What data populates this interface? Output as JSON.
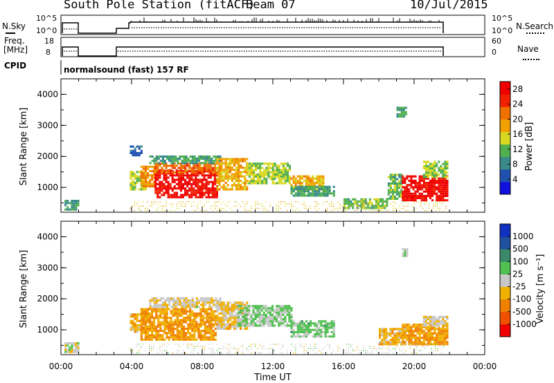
{
  "header": {
    "station": "South Pole Station (fitACF)",
    "beam": "Beam 07",
    "date": "10/Jul/2015"
  },
  "top_panels": {
    "nsky_label": "N.Sky",
    "nsearch_label": "N.Search",
    "nsky_ticks": [
      "10^5",
      "10^0"
    ],
    "nsearch_ticks": [
      "10^5",
      "10^0"
    ],
    "freq_label_1": "Freq.",
    "freq_label_2": "[MHz]",
    "freq_ticks": [
      "18",
      "8"
    ],
    "nave_label": "Nave",
    "nave_ticks": [
      "60",
      "0"
    ],
    "cpid_label": "CPID",
    "cpid_text": "normalsound (fast) 157 RF"
  },
  "colors": {
    "power_scale": [
      "#1010e0",
      "#2050b0",
      "#3a8a8a",
      "#50b050",
      "#d8d820",
      "#f0a000",
      "#f07000",
      "#f02000",
      "#f00000"
    ],
    "velocity_scale": [
      "#f00000",
      "#f05000",
      "#f08000",
      "#f0b000",
      "#c8c8c8",
      "#50c050",
      "#3a8a6a",
      "#2050a0",
      "#1030c0"
    ]
  },
  "chart_data": [
    {
      "type": "heatmap",
      "name": "power",
      "ylabel": "Slant Range [km]",
      "xlabel": "",
      "xlim": [
        0,
        24
      ],
      "ylim": [
        200,
        4500
      ],
      "yticks": [
        "1000",
        "2000",
        "3000",
        "4000"
      ],
      "xticks": [
        "00:00",
        "04:00",
        "08:00",
        "12:00",
        "16:00",
        "20:00",
        "00:00"
      ],
      "colorbar": {
        "label": "Power [dB]",
        "ticks": [
          "4",
          "8",
          "12",
          "16",
          "20",
          "24",
          "28"
        ],
        "range": [
          0,
          30
        ]
      },
      "regions": [
        {
          "t0": 0.2,
          "t1": 1.0,
          "r0": 250,
          "r1": 550,
          "value": 10
        },
        {
          "t0": 3.9,
          "t1": 4.8,
          "r0": 900,
          "r1": 1500,
          "value": 14
        },
        {
          "t0": 3.9,
          "t1": 4.6,
          "r0": 2000,
          "r1": 2300,
          "value": 6
        },
        {
          "t0": 4.5,
          "t1": 5.3,
          "r0": 1000,
          "r1": 1700,
          "value": 20
        },
        {
          "t0": 5.3,
          "t1": 8.8,
          "r0": 650,
          "r1": 1500,
          "value": 28
        },
        {
          "t0": 5.3,
          "t1": 8.8,
          "r0": 1450,
          "r1": 1750,
          "value": 22
        },
        {
          "t0": 5.0,
          "t1": 9.0,
          "r0": 1750,
          "r1": 2000,
          "value": 10
        },
        {
          "t0": 8.8,
          "t1": 10.5,
          "r0": 900,
          "r1": 1900,
          "value": 18
        },
        {
          "t0": 10.5,
          "t1": 13.0,
          "r0": 1100,
          "r1": 1800,
          "value": 14
        },
        {
          "t0": 13.0,
          "t1": 14.8,
          "r0": 900,
          "r1": 1350,
          "value": 18
        },
        {
          "t0": 13.0,
          "t1": 15.5,
          "r0": 700,
          "r1": 1000,
          "value": 10
        },
        {
          "t0": 16.0,
          "t1": 18.5,
          "r0": 300,
          "r1": 600,
          "value": 12
        },
        {
          "t0": 18.5,
          "t1": 19.3,
          "r0": 600,
          "r1": 1400,
          "value": 12
        },
        {
          "t0": 19.3,
          "t1": 21.9,
          "r0": 550,
          "r1": 1350,
          "value": 28
        },
        {
          "t0": 20.5,
          "t1": 21.9,
          "r0": 1300,
          "r1": 1800,
          "value": 14
        },
        {
          "t0": 19.0,
          "t1": 19.6,
          "r0": 3250,
          "r1": 3600,
          "value": 10
        },
        {
          "t0": 3.9,
          "t1": 21.9,
          "r0": 200,
          "r1": 500,
          "value": 16
        }
      ]
    },
    {
      "type": "heatmap",
      "name": "velocity",
      "ylabel": "Slant Range [km]",
      "xlabel": "Time UT",
      "xlim": [
        0,
        24
      ],
      "ylim": [
        200,
        4500
      ],
      "yticks": [
        "1000",
        "2000",
        "3000",
        "4000"
      ],
      "xticks": [
        "00:00",
        "04:00",
        "08:00",
        "12:00",
        "16:00",
        "20:00",
        "00:00"
      ],
      "colorbar": {
        "label": "Velocity [m s⁻¹]",
        "ticks": [
          "1000",
          "500",
          "100",
          "25",
          "-25",
          "-100",
          "-500",
          "-1000"
        ],
        "range": [
          -1200,
          1200
        ]
      },
      "regions": [
        {
          "t0": 0.2,
          "t1": 1.0,
          "r0": 250,
          "r1": 550,
          "value": 0
        },
        {
          "t0": 3.9,
          "t1": 4.8,
          "r0": 900,
          "r1": 1500,
          "value": -300
        },
        {
          "t0": 4.5,
          "t1": 8.8,
          "r0": 650,
          "r1": 1700,
          "value": -400
        },
        {
          "t0": 5.0,
          "t1": 9.0,
          "r0": 1700,
          "r1": 2000,
          "value": -80
        },
        {
          "t0": 8.8,
          "t1": 10.5,
          "r0": 1000,
          "r1": 1900,
          "value": -200
        },
        {
          "t0": 10.0,
          "t1": 13.0,
          "r0": 1100,
          "r1": 1800,
          "value": 150
        },
        {
          "t0": 13.0,
          "t1": 15.5,
          "r0": 750,
          "r1": 1300,
          "value": 200
        },
        {
          "t0": 18.0,
          "t1": 19.5,
          "r0": 500,
          "r1": 1000,
          "value": -250
        },
        {
          "t0": 19.3,
          "t1": 21.9,
          "r0": 500,
          "r1": 1200,
          "value": -400
        },
        {
          "t0": 20.5,
          "t1": 21.9,
          "r0": 1100,
          "r1": 1400,
          "value": -80
        },
        {
          "t0": 19.3,
          "t1": 19.6,
          "r0": 3350,
          "r1": 3600,
          "value": 80
        },
        {
          "t0": 3.9,
          "t1": 21.9,
          "r0": 200,
          "r1": 500,
          "value": 0
        }
      ]
    }
  ]
}
